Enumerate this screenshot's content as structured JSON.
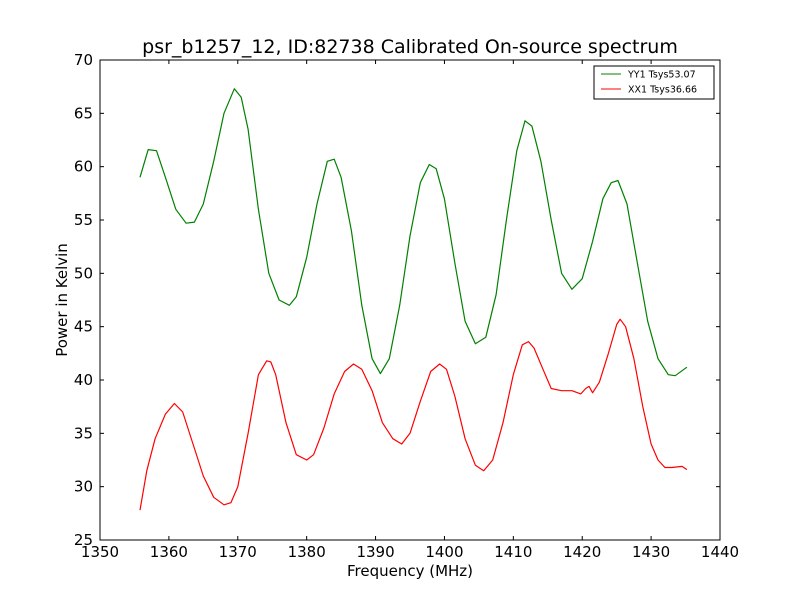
{
  "chart_data": {
    "type": "line",
    "title": "psr_b1257_12, ID:82738 Calibrated On-source spectrum",
    "xlabel": "Frequency (MHz)",
    "ylabel": "Power in Kelvin",
    "xlim": [
      1350,
      1440
    ],
    "ylim": [
      25,
      70
    ],
    "xticks": [
      "1350",
      "1360",
      "1370",
      "1380",
      "1390",
      "1400",
      "1410",
      "1420",
      "1430",
      "1440"
    ],
    "yticks": [
      "25",
      "30",
      "35",
      "40",
      "45",
      "50",
      "55",
      "60",
      "65",
      "70"
    ],
    "grid": false,
    "legend_position": "top-right",
    "series": [
      {
        "name": "YY1 Tsys53.07",
        "color": "#008000",
        "x": [
          1355.8,
          1357.0,
          1358.2,
          1359.5,
          1361.0,
          1362.5,
          1363.7,
          1365.0,
          1366.5,
          1368.0,
          1369.5,
          1370.5,
          1371.5,
          1373.0,
          1374.5,
          1376.0,
          1377.5,
          1378.5,
          1380.0,
          1381.5,
          1383.0,
          1384.0,
          1385.0,
          1386.5,
          1388.0,
          1389.5,
          1390.7,
          1392.0,
          1393.5,
          1395.0,
          1396.5,
          1397.8,
          1398.8,
          1400.0,
          1401.5,
          1403.0,
          1404.5,
          1406.0,
          1407.5,
          1409.0,
          1410.5,
          1411.7,
          1412.7,
          1414.0,
          1415.5,
          1417.0,
          1418.5,
          1420.0,
          1421.5,
          1423.0,
          1424.2,
          1425.2,
          1426.5,
          1428.0,
          1429.5,
          1431.0,
          1432.5,
          1433.5,
          1435.2
        ],
        "values": [
          59.0,
          61.6,
          61.5,
          59.0,
          56.0,
          54.7,
          54.8,
          56.5,
          60.5,
          65.0,
          67.3,
          66.5,
          63.5,
          56.0,
          50.0,
          47.5,
          47.0,
          47.8,
          51.5,
          56.5,
          60.5,
          60.7,
          59.0,
          54.0,
          47.0,
          42.0,
          40.6,
          42.0,
          47.0,
          53.5,
          58.5,
          60.2,
          59.8,
          57.0,
          51.0,
          45.5,
          43.4,
          44.0,
          48.0,
          55.0,
          61.5,
          64.3,
          63.8,
          60.5,
          55.0,
          50.0,
          48.5,
          49.5,
          53.0,
          57.0,
          58.5,
          58.7,
          56.5,
          51.0,
          45.5,
          42.0,
          40.5,
          40.4,
          41.2
        ]
      },
      {
        "name": "XX1 Tsys36.66",
        "color": "#ff0000",
        "x": [
          1355.8,
          1356.8,
          1358.0,
          1359.5,
          1360.8,
          1362.0,
          1363.5,
          1365.0,
          1366.5,
          1368.0,
          1369.0,
          1370.0,
          1371.5,
          1373.0,
          1374.2,
          1374.8,
          1375.5,
          1377.0,
          1378.5,
          1380.0,
          1381.0,
          1382.5,
          1384.0,
          1385.5,
          1386.8,
          1388.0,
          1389.5,
          1391.0,
          1392.5,
          1393.8,
          1395.0,
          1396.5,
          1398.0,
          1399.3,
          1400.3,
          1401.5,
          1403.0,
          1404.5,
          1405.7,
          1407.0,
          1408.5,
          1410.0,
          1411.3,
          1412.2,
          1413.0,
          1414.3,
          1415.5,
          1417.0,
          1418.5,
          1419.8,
          1420.5,
          1421.0,
          1421.5,
          1422.5,
          1423.8,
          1425.0,
          1425.5,
          1426.3,
          1427.5,
          1428.8,
          1430.0,
          1431.0,
          1432.0,
          1433.0,
          1434.5,
          1435.2
        ],
        "values": [
          27.8,
          31.5,
          34.5,
          36.8,
          37.8,
          37.0,
          34.0,
          31.0,
          29.0,
          28.3,
          28.5,
          30.0,
          35.0,
          40.5,
          41.8,
          41.7,
          40.5,
          36.0,
          33.0,
          32.5,
          33.0,
          35.5,
          38.7,
          40.8,
          41.5,
          41.0,
          39.0,
          36.0,
          34.5,
          34.0,
          35.0,
          38.0,
          40.8,
          41.5,
          41.0,
          38.5,
          34.5,
          32.0,
          31.5,
          32.5,
          36.0,
          40.5,
          43.3,
          43.6,
          43.0,
          41.0,
          39.2,
          39.0,
          39.0,
          38.7,
          39.2,
          39.4,
          38.8,
          39.8,
          42.5,
          45.2,
          45.7,
          45.0,
          42.0,
          37.5,
          34.0,
          32.5,
          31.8,
          31.8,
          31.9,
          31.6
        ]
      }
    ]
  }
}
